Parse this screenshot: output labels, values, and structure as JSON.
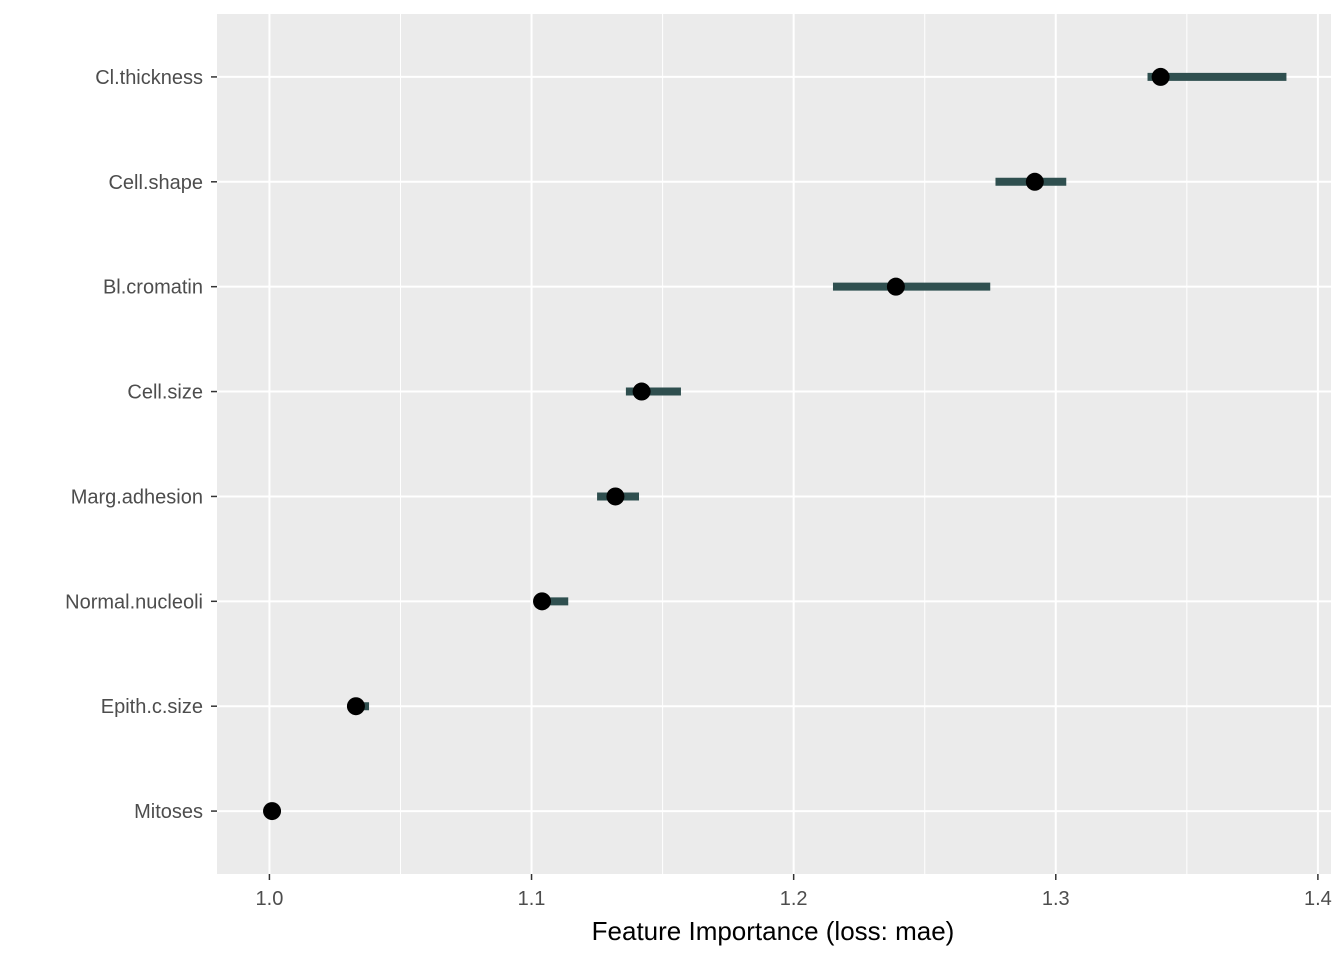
{
  "chart_data": {
    "type": "scatter",
    "xlabel": "Feature Importance (loss: mae)",
    "ylabel": "",
    "xlim": [
      0.98,
      1.405
    ],
    "x_ticks": [
      "1.0",
      "1.1",
      "1.2",
      "1.3",
      "1.4"
    ],
    "grid": true,
    "legend": "none",
    "categories": [
      "Cl.thickness",
      "Cell.shape",
      "Bl.cromatin",
      "Cell.size",
      "Marg.adhesion",
      "Normal.nucleoli",
      "Epith.c.size",
      "Mitoses"
    ],
    "points": [
      {
        "feature": "Cl.thickness",
        "importance": 1.34,
        "low": 1.335,
        "high": 1.388
      },
      {
        "feature": "Cell.shape",
        "importance": 1.292,
        "low": 1.277,
        "high": 1.304
      },
      {
        "feature": "Bl.cromatin",
        "importance": 1.239,
        "low": 1.215,
        "high": 1.275
      },
      {
        "feature": "Cell.size",
        "importance": 1.142,
        "low": 1.136,
        "high": 1.157
      },
      {
        "feature": "Marg.adhesion",
        "importance": 1.132,
        "low": 1.125,
        "high": 1.141
      },
      {
        "feature": "Normal.nucleoli",
        "importance": 1.104,
        "low": 1.102,
        "high": 1.114
      },
      {
        "feature": "Epith.c.size",
        "importance": 1.033,
        "low": 1.031,
        "high": 1.038
      },
      {
        "feature": "Mitoses",
        "importance": 1.001,
        "low": 1.001,
        "high": 1.001
      }
    ],
    "colors": {
      "panel": "#ebebeb",
      "grid": "#ffffff",
      "interval": "#2f4f4f",
      "point": "#000000",
      "tick": "#333333"
    }
  }
}
